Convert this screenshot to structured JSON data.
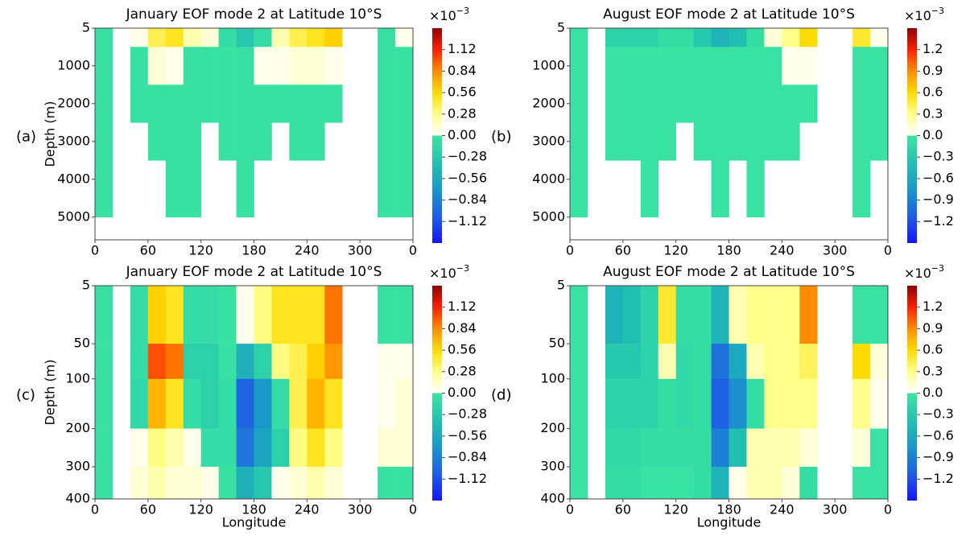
{
  "colormap": {
    "negative": [
      "#3ce6a0",
      "#22c2b0",
      "#1a98c8",
      "#1e5ee6",
      "#1414ff"
    ],
    "positive": [
      "#ffffff",
      "#ffff8c",
      "#ffdc00",
      "#ff8c00",
      "#ff2000",
      "#8c0000"
    ]
  },
  "chart_data": [
    {
      "type": "heatmap",
      "panel": "(a)",
      "title": "January EOF mode 2 at Latitude 10°S",
      "ylabel": "Depth (m)",
      "cbar_label": {
        "base": "×10",
        "exp": "−3"
      },
      "xlim": [
        0,
        360
      ],
      "xticks": [
        0,
        60,
        120,
        180,
        240,
        300,
        {
          "value": 360,
          "label": "0"
        }
      ],
      "ylim": [
        5,
        5600
      ],
      "yscale": "linear",
      "yticks": [
        5,
        1000,
        2000,
        3000,
        4000,
        5000
      ],
      "clim": [
        -1.4,
        1.4
      ],
      "cticks": [
        {
          "value": -1.12,
          "label": "−1.12"
        },
        {
          "value": -0.84,
          "label": "−0.84"
        },
        {
          "value": -0.56,
          "label": "−0.56"
        },
        {
          "value": -0.28,
          "label": "−0.28"
        },
        {
          "value": 0,
          "label": "0.00"
        },
        0.28,
        0.56,
        0.84,
        1.12
      ],
      "xbins": [
        0,
        20,
        40,
        60,
        80,
        100,
        120,
        140,
        160,
        180,
        200,
        220,
        240,
        260,
        280,
        300,
        320,
        340,
        360
      ],
      "ybins": [
        5,
        500,
        1500,
        2500,
        3500,
        5000
      ],
      "z": [
        [
          -0.05,
          null,
          0.05,
          0.4,
          0.5,
          0.2,
          0.1,
          -0.1,
          -0.3,
          -0.1,
          0.2,
          0.4,
          0.5,
          0.6,
          null,
          null,
          -0.05,
          0.05
        ],
        [
          -0.05,
          null,
          -0.05,
          0.1,
          0.05,
          -0.05,
          -0.05,
          -0.05,
          -0.05,
          0.05,
          0.05,
          0.1,
          0.1,
          0.05,
          null,
          null,
          -0.05,
          -0.05
        ],
        [
          -0.05,
          null,
          -0.05,
          -0.05,
          -0.05,
          -0.05,
          -0.05,
          -0.05,
          -0.05,
          -0.05,
          -0.05,
          -0.05,
          -0.05,
          -0.05,
          null,
          null,
          -0.05,
          -0.05
        ],
        [
          -0.05,
          null,
          null,
          -0.05,
          -0.05,
          -0.05,
          null,
          -0.05,
          -0.05,
          -0.05,
          null,
          -0.05,
          -0.05,
          null,
          null,
          null,
          -0.05,
          -0.05
        ],
        [
          -0.05,
          null,
          null,
          null,
          -0.05,
          -0.05,
          null,
          null,
          -0.05,
          null,
          null,
          null,
          null,
          null,
          null,
          null,
          -0.05,
          -0.05
        ]
      ]
    },
    {
      "type": "heatmap",
      "panel": "(b)",
      "title": "August EOF mode 2 at Latitude 10°S",
      "cbar_label": {
        "base": "×10",
        "exp": "−3"
      },
      "xlim": [
        0,
        360
      ],
      "xticks": [
        0,
        60,
        120,
        180,
        240,
        300,
        {
          "value": 360,
          "label": "0"
        }
      ],
      "ylim": [
        5,
        5600
      ],
      "yscale": "linear",
      "yticks": [
        5,
        1000,
        2000,
        3000,
        4000,
        5000
      ],
      "clim": [
        -1.5,
        1.5
      ],
      "cticks": [
        {
          "value": -1.2,
          "label": "−1.2"
        },
        {
          "value": -0.9,
          "label": "−0.9"
        },
        {
          "value": -0.6,
          "label": "−0.6"
        },
        {
          "value": -0.3,
          "label": "−0.3"
        },
        {
          "value": 0,
          "label": "0.0"
        },
        0.3,
        0.6,
        0.9,
        1.2
      ],
      "xbins": [
        0,
        20,
        40,
        60,
        80,
        100,
        120,
        140,
        160,
        180,
        200,
        220,
        240,
        260,
        280,
        300,
        320,
        340,
        360
      ],
      "ybins": [
        5,
        500,
        1500,
        2500,
        3500,
        5000
      ],
      "z": [
        [
          -0.05,
          null,
          -0.2,
          -0.2,
          -0.2,
          -0.1,
          -0.1,
          -0.3,
          -0.5,
          -0.4,
          -0.1,
          0.1,
          0.3,
          0.6,
          null,
          null,
          0.5,
          0.05
        ],
        [
          -0.05,
          null,
          -0.05,
          -0.05,
          -0.05,
          -0.05,
          -0.05,
          -0.05,
          -0.05,
          -0.05,
          -0.05,
          -0.05,
          0.05,
          0.05,
          null,
          null,
          -0.05,
          -0.05
        ],
        [
          -0.05,
          null,
          -0.05,
          -0.05,
          -0.05,
          -0.05,
          -0.05,
          -0.05,
          -0.05,
          -0.05,
          -0.05,
          -0.05,
          -0.05,
          -0.05,
          null,
          null,
          -0.05,
          -0.05
        ],
        [
          -0.05,
          null,
          -0.05,
          -0.05,
          -0.05,
          -0.05,
          null,
          -0.05,
          -0.05,
          -0.05,
          -0.05,
          -0.05,
          -0.05,
          null,
          null,
          null,
          -0.05,
          -0.05
        ],
        [
          -0.05,
          null,
          null,
          null,
          -0.05,
          null,
          null,
          null,
          -0.05,
          null,
          -0.05,
          null,
          null,
          null,
          null,
          null,
          -0.05,
          null
        ]
      ]
    },
    {
      "type": "heatmap",
      "panel": "(c)",
      "title": "January EOF mode 2 at Latitude 10°S",
      "ylabel": "Depth (m)",
      "xlabel": "Longitude",
      "cbar_label": {
        "base": "×10",
        "exp": "−3"
      },
      "xlim": [
        0,
        360
      ],
      "xticks": [
        0,
        60,
        120,
        180,
        240,
        300,
        {
          "value": 360,
          "label": "0"
        }
      ],
      "ylim": [
        5,
        400
      ],
      "yscale": "sqrt",
      "yticks": [
        5,
        50,
        100,
        200,
        300,
        400
      ],
      "clim": [
        -1.4,
        1.4
      ],
      "cticks": [
        {
          "value": -1.12,
          "label": "−1.12"
        },
        {
          "value": -0.84,
          "label": "−0.84"
        },
        {
          "value": -0.56,
          "label": "−0.56"
        },
        {
          "value": -0.28,
          "label": "−0.28"
        },
        {
          "value": 0,
          "label": "0.00"
        },
        0.28,
        0.56,
        0.84,
        1.12
      ],
      "xbins": [
        0,
        20,
        40,
        60,
        80,
        100,
        120,
        140,
        160,
        180,
        200,
        220,
        240,
        260,
        280,
        300,
        320,
        340,
        360
      ],
      "ybins": [
        5,
        50,
        100,
        200,
        300,
        400
      ],
      "z": [
        [
          -0.05,
          null,
          -0.1,
          0.6,
          0.5,
          -0.1,
          -0.1,
          -0.05,
          0.05,
          0.3,
          0.5,
          0.5,
          0.5,
          0.9,
          null,
          null,
          -0.05,
          -0.05
        ],
        [
          -0.05,
          null,
          -0.1,
          1.0,
          0.9,
          -0.2,
          -0.2,
          -0.05,
          -0.5,
          -0.2,
          0.3,
          0.4,
          0.6,
          0.8,
          null,
          null,
          0.05,
          0.05
        ],
        [
          -0.05,
          null,
          -0.15,
          0.7,
          0.5,
          -0.1,
          -0.2,
          -0.1,
          -1.0,
          -0.7,
          -0.1,
          0.4,
          0.7,
          0.5,
          null,
          null,
          0.05,
          0.1
        ],
        [
          -0.05,
          null,
          0.05,
          0.3,
          0.2,
          0.05,
          -0.1,
          -0.1,
          -0.9,
          -0.6,
          -0.2,
          0.3,
          0.5,
          0.3,
          null,
          null,
          0.1,
          0.1
        ],
        [
          -0.05,
          null,
          0.1,
          0.2,
          0.1,
          0.1,
          0.05,
          -0.05,
          -0.5,
          -0.3,
          0.05,
          0.1,
          0.2,
          0.1,
          null,
          null,
          -0.05,
          -0.05
        ]
      ]
    },
    {
      "type": "heatmap",
      "panel": "(d)",
      "title": "August EOF mode 2 at Latitude 10°S",
      "xlabel": "Longitude",
      "cbar_label": {
        "base": "×10",
        "exp": "−3"
      },
      "xlim": [
        0,
        360
      ],
      "xticks": [
        0,
        60,
        120,
        180,
        240,
        300,
        {
          "value": 360,
          "label": "0"
        }
      ],
      "ylim": [
        5,
        400
      ],
      "yscale": "sqrt",
      "yticks": [
        5,
        50,
        100,
        200,
        300,
        400
      ],
      "clim": [
        -1.5,
        1.5
      ],
      "cticks": [
        {
          "value": -1.2,
          "label": "−1.2"
        },
        {
          "value": -0.9,
          "label": "−0.9"
        },
        {
          "value": -0.6,
          "label": "−0.6"
        },
        {
          "value": -0.3,
          "label": "−0.3"
        },
        {
          "value": 0,
          "label": "0.0"
        },
        0.3,
        0.6,
        0.9,
        1.2
      ],
      "xbins": [
        0,
        20,
        40,
        60,
        80,
        100,
        120,
        140,
        160,
        180,
        200,
        220,
        240,
        260,
        280,
        300,
        320,
        340,
        360
      ],
      "ybins": [
        5,
        50,
        100,
        200,
        300,
        400
      ],
      "z": [
        [
          -0.05,
          null,
          -0.5,
          -0.4,
          -0.2,
          0.5,
          -0.1,
          -0.1,
          -0.5,
          0.2,
          0.3,
          0.3,
          0.3,
          0.9,
          null,
          null,
          -0.05,
          -0.05
        ],
        [
          -0.05,
          null,
          -0.3,
          -0.3,
          -0.2,
          0.2,
          -0.15,
          -0.1,
          -1.0,
          -0.6,
          0.2,
          0.3,
          0.3,
          0.4,
          null,
          null,
          0.6,
          0.1
        ],
        [
          -0.05,
          null,
          -0.2,
          -0.2,
          -0.2,
          -0.1,
          -0.15,
          -0.1,
          -1.1,
          -0.8,
          -0.1,
          0.3,
          0.3,
          0.3,
          null,
          null,
          0.3,
          0.05
        ],
        [
          -0.05,
          null,
          -0.15,
          -0.15,
          -0.1,
          -0.1,
          -0.1,
          -0.1,
          -0.9,
          -0.4,
          0.2,
          0.2,
          0.2,
          0.1,
          null,
          null,
          0.1,
          -0.05
        ],
        [
          -0.05,
          null,
          -0.1,
          -0.1,
          -0.05,
          -0.05,
          -0.05,
          -0.1,
          -0.5,
          0.05,
          0.2,
          0.2,
          0.1,
          -0.1,
          null,
          null,
          -0.05,
          -0.05
        ]
      ]
    }
  ]
}
